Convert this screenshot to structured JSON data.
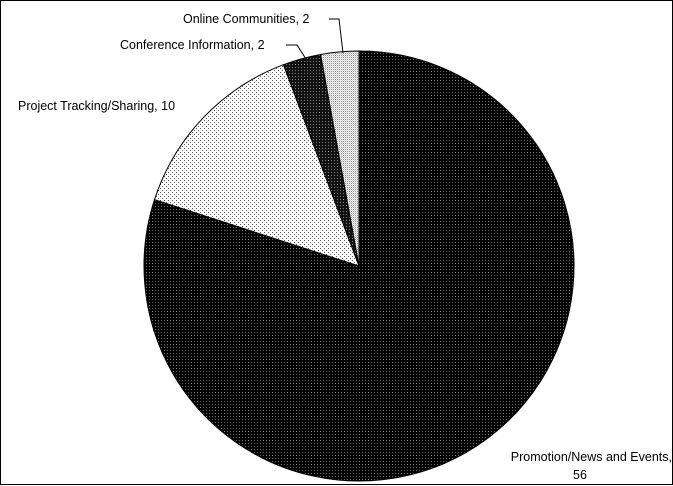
{
  "chart_data": {
    "type": "pie",
    "title": "",
    "slices": [
      {
        "label": "Promotion/News and Events",
        "value": 56,
        "label_text": "Promotion/News and Events,",
        "value_text": "56",
        "fill": "#000000",
        "pattern": "dense-dots-on-black"
      },
      {
        "label": "Project Tracking/Sharing",
        "value": 10,
        "label_text": "Project Tracking/Sharing, 10",
        "fill": "#ffffff",
        "pattern": "sparse-dots-on-white"
      },
      {
        "label": "Conference Information",
        "value": 2,
        "label_text": "Conference Information, 2",
        "fill": "#1a1a1a",
        "pattern": "dark-dots"
      },
      {
        "label": "Online Communities",
        "value": 2,
        "label_text": "Online Communities, 2",
        "fill": "#e6e6e6",
        "pattern": "light-dots"
      }
    ],
    "start": "12-o'clock",
    "direction": "clockwise",
    "colors": {
      "outline": "#000000",
      "background": "#ffffff"
    }
  }
}
